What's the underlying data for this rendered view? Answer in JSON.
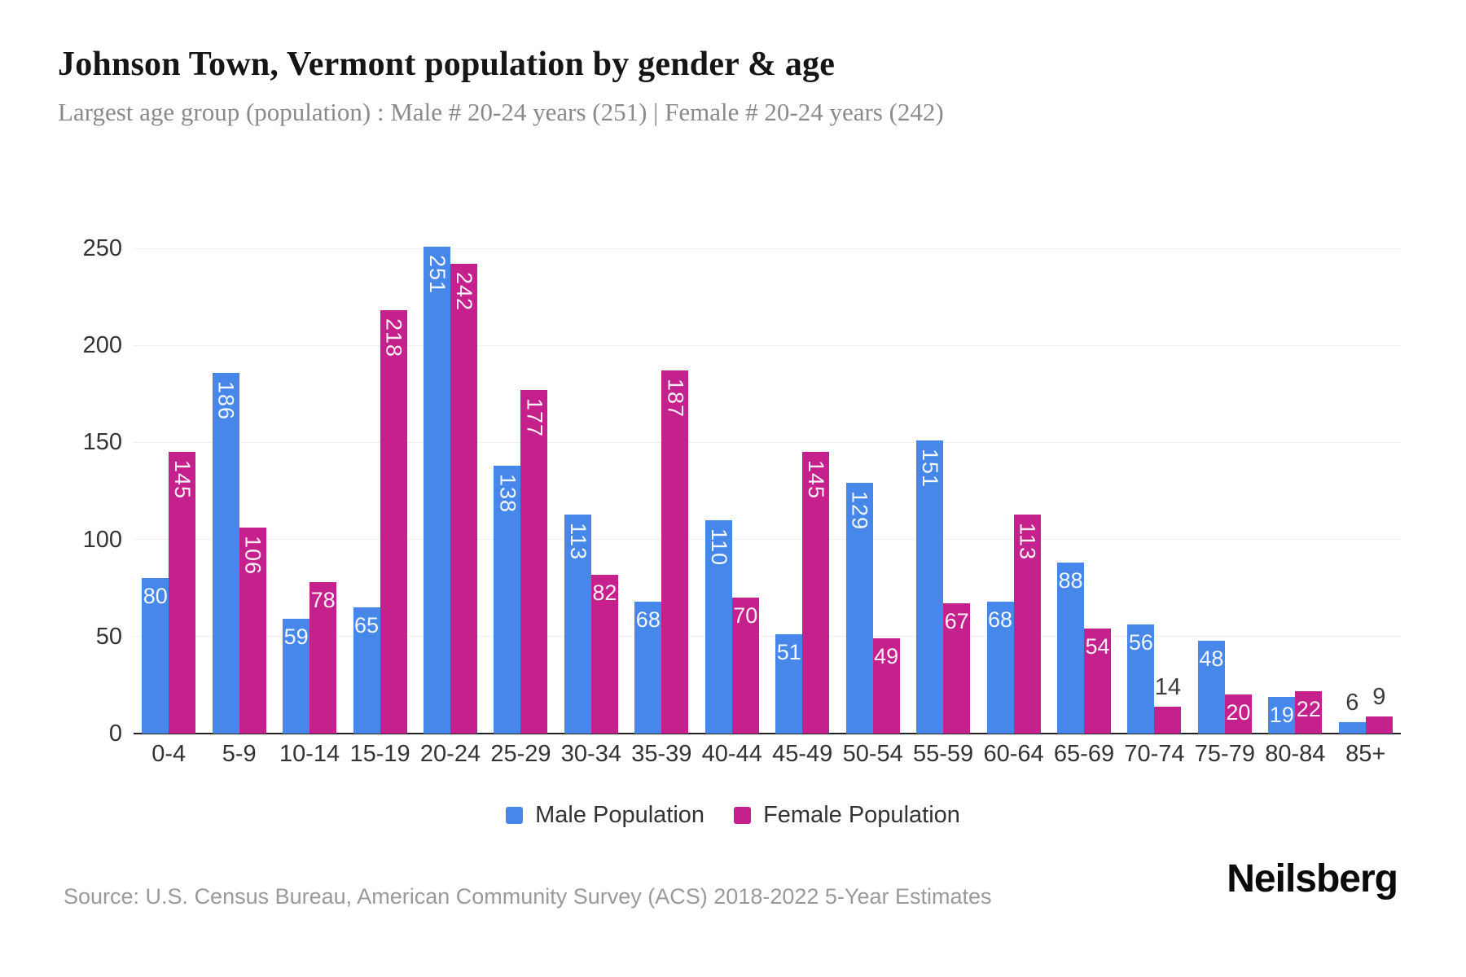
{
  "chart_data": {
    "type": "bar",
    "title": "Johnson Town, Vermont population by gender & age",
    "subtitle": "Largest age group (population) : Male # 20-24 years (251) | Female # 20-24 years (242)",
    "categories": [
      "0-4",
      "5-9",
      "10-14",
      "15-19",
      "20-24",
      "25-29",
      "30-34",
      "35-39",
      "40-44",
      "45-49",
      "50-54",
      "55-59",
      "60-64",
      "65-69",
      "70-74",
      "75-79",
      "80-84",
      "85+"
    ],
    "series": [
      {
        "name": "Male Population",
        "color": "#4787ea",
        "values": [
          80,
          186,
          59,
          65,
          251,
          138,
          113,
          68,
          110,
          51,
          129,
          151,
          68,
          88,
          56,
          48,
          19,
          6
        ]
      },
      {
        "name": "Female Population",
        "color": "#c4218c",
        "values": [
          145,
          106,
          78,
          218,
          242,
          177,
          82,
          187,
          70,
          145,
          49,
          67,
          113,
          54,
          14,
          20,
          22,
          9
        ]
      }
    ],
    "xlabel": "",
    "ylabel": "",
    "yticks": [
      0,
      50,
      100,
      150,
      200,
      250
    ],
    "ylim": [
      0,
      250
    ],
    "grid": true,
    "legend_position": "bottom",
    "value_labels": "shown on every bar; values >= 100 rotated vertical inside bar, values 15-99 horizontal inside bar, values < 15 dark label above bar"
  },
  "colors": {
    "male": "#4787ea",
    "female": "#c4218c",
    "gridline": "#efefef",
    "axis_line": "#222222",
    "axis_text": "#333333",
    "title_text": "#151515",
    "subtitle_text": "#8a8a8a",
    "source_text": "#9a9a9a"
  },
  "footer": {
    "source": "Source: U.S. Census Bureau, American Community Survey (ACS) 2018-2022 5-Year Estimates",
    "brand": "Neilsberg"
  }
}
